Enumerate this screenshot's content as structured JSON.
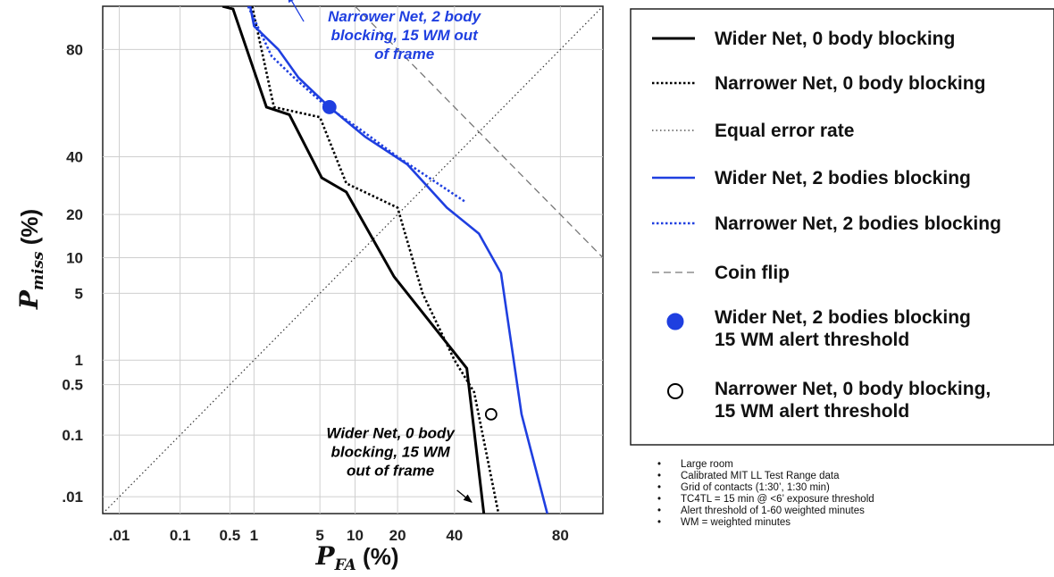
{
  "chart_data": {
    "type": "line",
    "title": "",
    "scale": "normal-deviate (DET) on both axes",
    "xlabel": {
      "symbol": "P",
      "subscript": "FA",
      "unit": " (%)"
    },
    "ylabel": {
      "symbol": "P",
      "subscript": "miss",
      "unit": " (%)"
    },
    "xlim": [
      0.005,
      90
    ],
    "ylim": [
      0.005,
      90
    ],
    "grid": true,
    "x_ticks": [
      {
        "v": 0.01,
        "label": ".01"
      },
      {
        "v": 0.1,
        "label": "0.1"
      },
      {
        "v": 0.5,
        "label": "0.5"
      },
      {
        "v": 1,
        "label": "1"
      },
      {
        "v": 5,
        "label": "5"
      },
      {
        "v": 10,
        "label": "10"
      },
      {
        "v": 20,
        "label": "20"
      },
      {
        "v": 40,
        "label": "40"
      },
      {
        "v": 80,
        "label": "80"
      }
    ],
    "y_ticks": [
      {
        "v": 0.01,
        "label": ".01"
      },
      {
        "v": 0.1,
        "label": "0.1"
      },
      {
        "v": 0.5,
        "label": "0.5"
      },
      {
        "v": 1,
        "label": "1"
      },
      {
        "v": 5,
        "label": "5"
      },
      {
        "v": 10,
        "label": "10"
      },
      {
        "v": 20,
        "label": "20"
      },
      {
        "v": 40,
        "label": "40"
      },
      {
        "v": 80,
        "label": "80"
      }
    ],
    "series": [
      {
        "name": "Wider Net, 0 body blocking",
        "color": "#000000",
        "style": "solid",
        "points": [
          [
            0.4,
            90
          ],
          [
            0.55,
            89.5
          ],
          [
            1.4,
            60
          ],
          [
            2.5,
            57
          ],
          [
            5.2,
            32
          ],
          [
            8.5,
            27
          ],
          [
            19,
            7
          ],
          [
            45,
            0.8
          ],
          [
            52,
            0.005
          ]
        ]
      },
      {
        "name": "Narrower Net, 0 body blocking",
        "color": "#000000",
        "style": "dotted",
        "points": [
          [
            0.95,
            90
          ],
          [
            1.7,
            60
          ],
          [
            5,
            56
          ],
          [
            8.5,
            30
          ],
          [
            20,
            22
          ],
          [
            28,
            5
          ],
          [
            40,
            1
          ],
          [
            48,
            0.4
          ],
          [
            58,
            0.005
          ]
        ]
      },
      {
        "name": "Equal error rate",
        "color": "#333333",
        "style": "fine-dotted",
        "points": [
          [
            0.005,
            0.005
          ],
          [
            90,
            90
          ]
        ]
      },
      {
        "name": "Wider Net, 2 bodies blocking",
        "color": "#1f3fe0",
        "style": "solid",
        "points": [
          [
            0.9,
            90
          ],
          [
            1.0,
            86
          ],
          [
            1.9,
            80
          ],
          [
            3.1,
            71
          ],
          [
            6.1,
            60
          ],
          [
            12,
            48
          ],
          [
            23,
            37
          ],
          [
            37,
            22
          ],
          [
            50,
            15
          ],
          [
            59,
            7.5
          ],
          [
            67,
            0.2
          ],
          [
            76,
            0.005
          ]
        ]
      },
      {
        "name": "Narrower Net, 2 bodies blocking",
        "color": "#1f3fe0",
        "style": "dotted",
        "points": [
          [
            0.85,
            90
          ],
          [
            1.6,
            78
          ],
          [
            2.8,
            71
          ],
          [
            5.5,
            61
          ],
          [
            11,
            51
          ],
          [
            20,
            40
          ],
          [
            44,
            24
          ]
        ]
      },
      {
        "name": "Coin flip",
        "color": "#777777",
        "style": "dashed",
        "points": [
          [
            10,
            90
          ],
          [
            90,
            10
          ]
        ]
      }
    ],
    "markers": [
      {
        "name": "Wider Net, 2 bodies blocking 15 WM alert threshold",
        "label_lines": [
          "Wider Net, 2 bodies blocking",
          "15 WM alert threshold"
        ],
        "x": 6.1,
        "y": 60,
        "fill": "#1f3fe0",
        "stroke": "#1f3fe0"
      },
      {
        "name": "Narrower Net, 0 body blocking, 15 WM alert threshold",
        "label_lines": [
          "Narrower Net, 0 body blocking,",
          "15 WM alert threshold"
        ],
        "x": 55,
        "y": 0.2,
        "fill": "#ffffff",
        "stroke": "#000000"
      }
    ],
    "annotations": [
      {
        "lines": [
          "Narrower Net, 2 body",
          "blocking, 15 WM out",
          "of frame"
        ],
        "color": "#1f3fe0",
        "anchor": "middle",
        "x": 22,
        "y": 87,
        "arrow_from": [
          3.5,
          87
        ],
        "arrow_to": [
          2.4,
          92
        ]
      },
      {
        "lines": [
          "Wider Net, 0 body",
          "blocking, 15 WM",
          "out of frame"
        ],
        "color": "#000000",
        "anchor": "middle",
        "x": 18,
        "y": 0.09,
        "arrow_from": [
          41,
          0.013
        ],
        "arrow_to": [
          47,
          0.008
        ]
      }
    ],
    "legend": {
      "position": "right"
    }
  },
  "notes": [
    "Large room",
    "Calibrated MIT LL Test Range data",
    "Grid of contacts (1:30’, 1:30 min)",
    "TC4TL = 15 min @ <6’ exposure threshold",
    "Alert threshold of 1-60 weighted minutes",
    "WM = weighted minutes"
  ]
}
